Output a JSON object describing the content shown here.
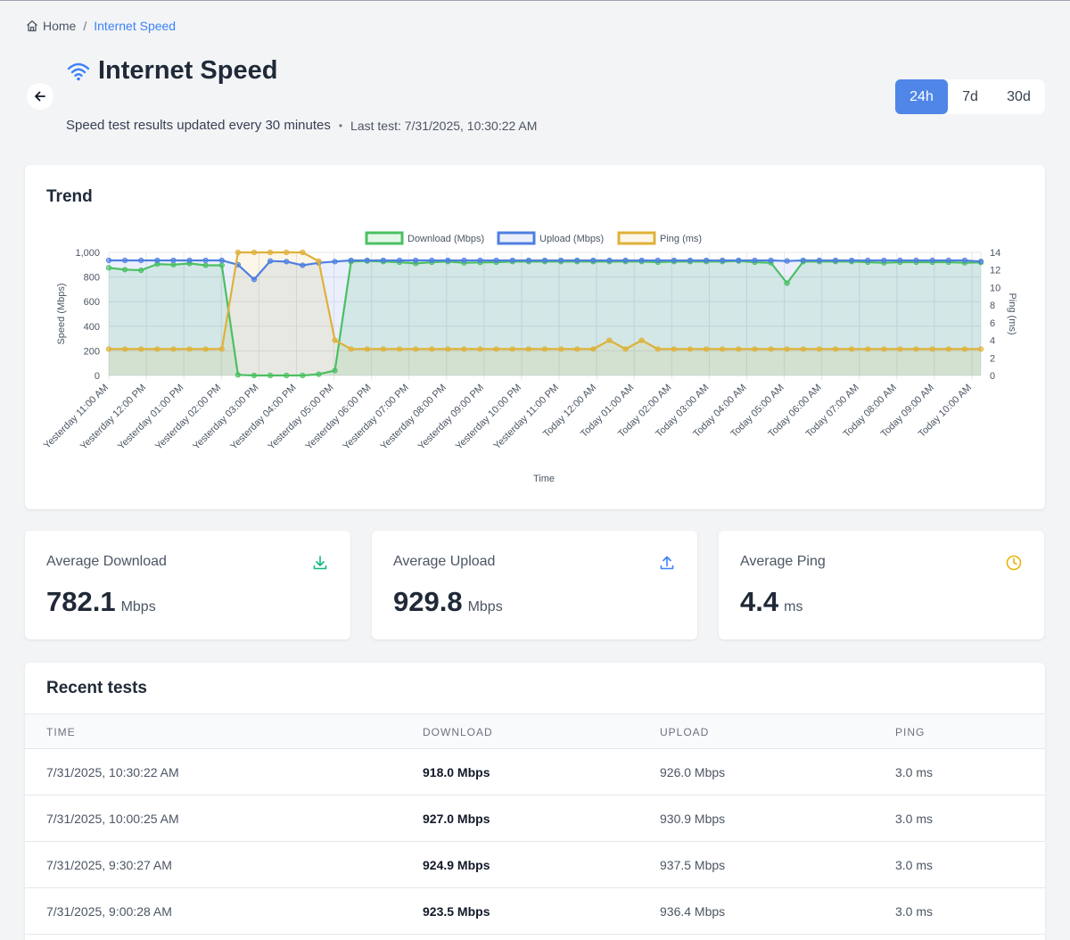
{
  "breadcrumb": {
    "home": "Home",
    "separator": "/",
    "current": "Internet Speed"
  },
  "header": {
    "title": "Internet Speed",
    "subtitle": "Speed test results updated every 30 minutes",
    "dot": "•",
    "last_test": "Last test: 7/31/2025, 10:30:22 AM"
  },
  "ranges": [
    {
      "label": "24h",
      "active": true
    },
    {
      "label": "7d",
      "active": false
    },
    {
      "label": "30d",
      "active": false
    }
  ],
  "trend": {
    "title": "Trend"
  },
  "chart_data": {
    "type": "line",
    "xlabel": "Time",
    "ylabel": "Speed (Mbps)",
    "y2label": "Ping (ms)",
    "ylim": [
      0,
      1000
    ],
    "y2lim": [
      0,
      14
    ],
    "yticks": [
      "0",
      "200",
      "400",
      "600",
      "800",
      "1,000"
    ],
    "y2ticks": [
      "0",
      "2",
      "4",
      "6",
      "8",
      "10",
      "12",
      "14"
    ],
    "grid": true,
    "legend_position": "top",
    "tick_labels": [
      "Yesterday 11:00 AM",
      "Yesterday 12:00 PM",
      "Yesterday 01:00 PM",
      "Yesterday 02:00 PM",
      "Yesterday 03:00 PM",
      "Yesterday 04:00 PM",
      "Yesterday 05:00 PM",
      "Yesterday 06:00 PM",
      "Yesterday 07:00 PM",
      "Yesterday 08:00 PM",
      "Yesterday 09:00 PM",
      "Yesterday 10:00 PM",
      "Yesterday 11:00 PM",
      "Today 12:00 AM",
      "Today 01:00 AM",
      "Today 02:00 AM",
      "Today 03:00 AM",
      "Today 04:00 AM",
      "Today 05:00 AM",
      "Today 06:00 AM",
      "Today 07:00 AM",
      "Today 08:00 AM",
      "Today 09:00 AM",
      "Today 10:00 AM"
    ],
    "series": [
      {
        "name": "Download (Mbps)",
        "axis": "left",
        "color": "#4bc063",
        "values": [
          875,
          860,
          855,
          905,
          900,
          910,
          895,
          895,
          5,
          0,
          0,
          0,
          0,
          10,
          40,
          925,
          930,
          925,
          920,
          910,
          920,
          925,
          915,
          918,
          920,
          925,
          925,
          925,
          925,
          925,
          925,
          925,
          925,
          925,
          920,
          925,
          925,
          925,
          925,
          930,
          920,
          915,
          750,
          925,
          925,
          925,
          925,
          920,
          915,
          920,
          920,
          920,
          920,
          915,
          918
        ]
      },
      {
        "name": "Upload (Mbps)",
        "axis": "left",
        "color": "#4f7fe0",
        "values": [
          935,
          935,
          935,
          935,
          935,
          935,
          935,
          935,
          900,
          780,
          930,
          925,
          895,
          915,
          925,
          935,
          935,
          935,
          935,
          935,
          935,
          935,
          935,
          935,
          935,
          935,
          935,
          935,
          935,
          935,
          935,
          935,
          935,
          935,
          935,
          935,
          935,
          935,
          935,
          935,
          935,
          935,
          930,
          935,
          935,
          935,
          935,
          935,
          935,
          935,
          935,
          935,
          935,
          935,
          926
        ]
      },
      {
        "name": "Ping (ms)",
        "axis": "right",
        "color": "#dfb139",
        "values": [
          3,
          3,
          3,
          3,
          3,
          3,
          3,
          3,
          14,
          14,
          14,
          14,
          14,
          13,
          4,
          3,
          3,
          3,
          3,
          3,
          3,
          3,
          3,
          3,
          3,
          3,
          3,
          3,
          3,
          3,
          3,
          4,
          3,
          4,
          3,
          3,
          3,
          3,
          3,
          3,
          3,
          3,
          3,
          3,
          3,
          3,
          3,
          3,
          3,
          3,
          3,
          3,
          3,
          3,
          3
        ]
      }
    ]
  },
  "stats": [
    {
      "label": "Average Download",
      "value": "782.1",
      "unit": "Mbps",
      "icon": "download-icon",
      "color": "#10b981"
    },
    {
      "label": "Average Upload",
      "value": "929.8",
      "unit": "Mbps",
      "icon": "upload-icon",
      "color": "#3b82f6"
    },
    {
      "label": "Average Ping",
      "value": "4.4",
      "unit": "ms",
      "icon": "clock-icon",
      "color": "#eab308"
    }
  ],
  "recent": {
    "title": "Recent tests",
    "columns": [
      "TIME",
      "DOWNLOAD",
      "UPLOAD",
      "PING"
    ],
    "rows": [
      {
        "time": "7/31/2025, 10:30:22 AM",
        "download": "918.0 Mbps",
        "upload": "926.0 Mbps",
        "ping": "3.0 ms"
      },
      {
        "time": "7/31/2025, 10:00:25 AM",
        "download": "927.0 Mbps",
        "upload": "930.9 Mbps",
        "ping": "3.0 ms"
      },
      {
        "time": "7/31/2025, 9:30:27 AM",
        "download": "924.9 Mbps",
        "upload": "937.5 Mbps",
        "ping": "3.0 ms"
      },
      {
        "time": "7/31/2025, 9:00:28 AM",
        "download": "923.5 Mbps",
        "upload": "936.4 Mbps",
        "ping": "3.0 ms"
      }
    ]
  }
}
